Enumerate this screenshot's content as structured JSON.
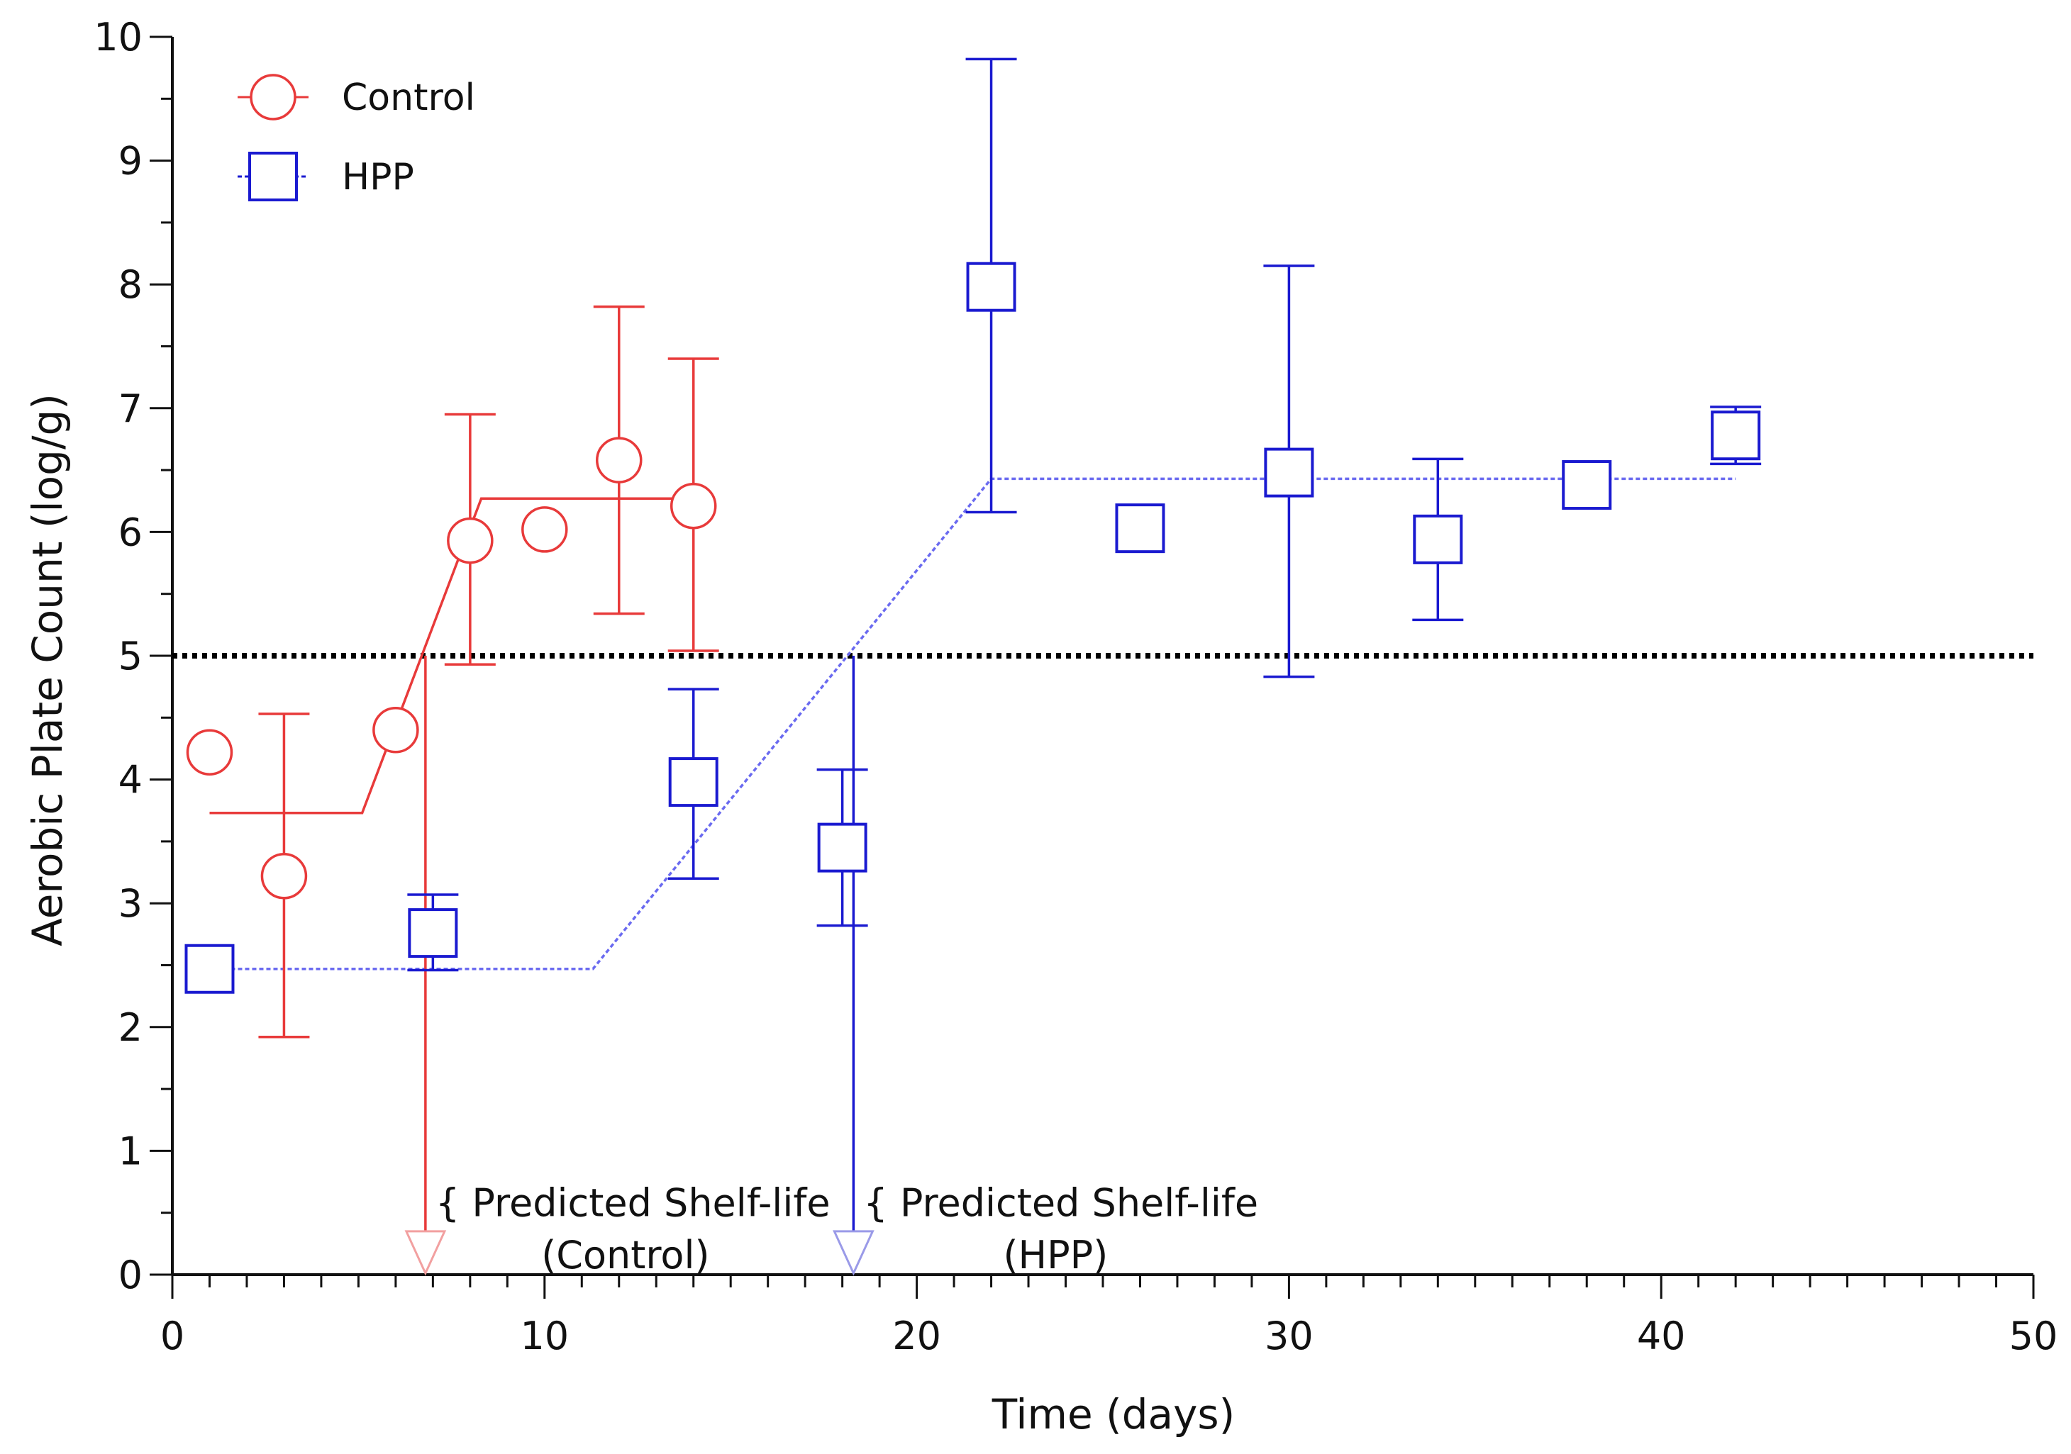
{
  "chart_data": {
    "type": "scatter",
    "xlabel": "Time (days)",
    "ylabel": "Aerobic Plate Count (log/g)",
    "xlim": [
      0,
      50
    ],
    "ylim": [
      0,
      10
    ],
    "xticks": [
      0,
      10,
      20,
      30,
      40,
      50
    ],
    "yticks": [
      0,
      1,
      2,
      3,
      4,
      5,
      6,
      7,
      8,
      9,
      10
    ],
    "grid": false,
    "legend_position": "top-left",
    "threshold": 5,
    "series": [
      {
        "name": "Control",
        "color": "#e83a3a",
        "marker": "circle",
        "points": [
          {
            "x": 1,
            "y": 4.22
          },
          {
            "x": 3,
            "y": 3.22,
            "err_low": 1.92,
            "err_high": 4.53
          },
          {
            "x": 6,
            "y": 4.4
          },
          {
            "x": 8,
            "y": 5.93,
            "err_low": 4.93,
            "err_high": 6.95
          },
          {
            "x": 10,
            "y": 6.02
          },
          {
            "x": 12,
            "y": 6.58,
            "err_low": 5.34,
            "err_high": 7.82
          },
          {
            "x": 14,
            "y": 6.21,
            "err_low": 5.04,
            "err_high": 7.4
          }
        ],
        "fit": [
          [
            1,
            3.73
          ],
          [
            5.1,
            3.73
          ],
          [
            8.3,
            6.27
          ],
          [
            14,
            6.27
          ]
        ]
      },
      {
        "name": "HPP",
        "color": "#1a1ad0",
        "marker": "square",
        "points": [
          {
            "x": 1,
            "y": 2.47
          },
          {
            "x": 7,
            "y": 2.76,
            "err_low": 2.46,
            "err_high": 3.07
          },
          {
            "x": 14,
            "y": 3.98,
            "err_low": 3.2,
            "err_high": 4.73
          },
          {
            "x": 18,
            "y": 3.45,
            "err_low": 2.82,
            "err_high": 4.08
          },
          {
            "x": 22,
            "y": 7.98,
            "err_low": 6.16,
            "err_high": 9.82
          },
          {
            "x": 26,
            "y": 6.03
          },
          {
            "x": 30,
            "y": 6.48,
            "err_low": 4.83,
            "err_high": 8.15
          },
          {
            "x": 34,
            "y": 5.94,
            "err_low": 5.29,
            "err_high": 6.59
          },
          {
            "x": 38,
            "y": 6.38
          },
          {
            "x": 42,
            "y": 6.78,
            "err_low": 6.55,
            "err_high": 7.01
          }
        ],
        "fit": [
          [
            1,
            2.47
          ],
          [
            11.3,
            2.47
          ],
          [
            22,
            6.43
          ],
          [
            42,
            6.43
          ]
        ]
      }
    ],
    "annotations": [
      {
        "x": 6.8,
        "line1": "{ Predicted Shelf-life",
        "line2": "(Control)",
        "color": "#e83a3a",
        "arrow_color": "#f2a0a0"
      },
      {
        "x": 18.3,
        "line1": "{ Predicted Shelf-life",
        "line2": "(HPP)",
        "color": "#1a1ad0",
        "arrow_color": "#9a9ae8"
      }
    ]
  }
}
